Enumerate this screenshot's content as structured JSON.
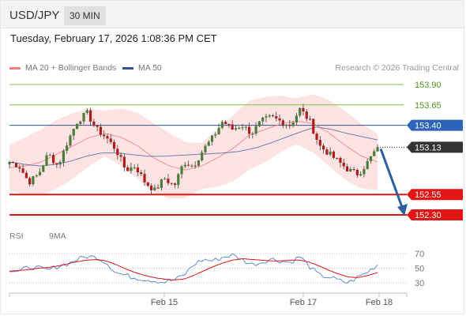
{
  "header": {
    "symbol": "USD/JPY",
    "timeframe": "30 MIN"
  },
  "datetime": "Tuesday, February 17, 2026 1:08:36 PM CET",
  "credit": "Research © 2026 Trading Central",
  "colors": {
    "bb": "#f47c7c",
    "ma50": "#2f5597",
    "resistance": "#7fc241",
    "support": "#e31414",
    "rsi": "#5b8ad9",
    "rsi_ma": "#e31414",
    "candle_up": "#4a7d3a",
    "candle_down": "#b01c1c",
    "current": "#333333",
    "arrow": "#2e5f9e"
  },
  "chart_data": {
    "type": "candlestick",
    "symbol": "USD/JPY",
    "timeframe": "30 MIN",
    "indicators": [
      "MA 20 + Bollinger Bands",
      "MA 50"
    ],
    "x_ticks": [
      "Feb 15",
      "Feb 17",
      "Feb 18"
    ],
    "ylim": [
      152.2,
      154.0
    ],
    "levels": [
      {
        "label": "153.90",
        "value": 153.9,
        "kind": "resistance"
      },
      {
        "label": "153.65",
        "value": 153.65,
        "kind": "resistance"
      },
      {
        "label": "153.40",
        "value": 153.4,
        "kind": "pivot"
      },
      {
        "label": "153.13",
        "value": 153.13,
        "kind": "current"
      },
      {
        "label": "152.55",
        "value": 152.55,
        "kind": "support"
      },
      {
        "label": "152.30",
        "value": 152.3,
        "kind": "support"
      }
    ],
    "forecast": {
      "from": 153.13,
      "to": 152.3
    },
    "price_path": [
      152.95,
      152.9,
      152.7,
      152.8,
      153.05,
      152.9,
      153.2,
      153.45,
      153.55,
      153.35,
      153.25,
      153.1,
      152.85,
      152.9,
      152.7,
      152.6,
      152.75,
      152.65,
      152.95,
      152.9,
      153.1,
      153.25,
      153.45,
      153.35,
      153.4,
      153.3,
      153.45,
      153.5,
      153.45,
      153.4,
      153.6,
      153.45,
      153.15,
      153.05,
      152.95,
      152.85,
      152.8,
      152.95,
      153.13
    ],
    "ma20": [
      152.88,
      152.9,
      152.95,
      153.05,
      153.15,
      153.25,
      153.3,
      153.25,
      153.15,
      153.0,
      152.9,
      152.85,
      152.9,
      153.0,
      153.12,
      153.28,
      153.35,
      153.42,
      153.45,
      153.42,
      153.3,
      153.15,
      153.02,
      152.95
    ],
    "ma50": [
      152.95,
      152.92,
      152.9,
      152.92,
      152.96,
      153.02,
      153.06,
      153.06,
      153.04,
      153.02,
      153.02,
      153.03,
      153.04,
      153.05,
      153.06,
      153.08,
      153.12,
      153.18,
      153.25,
      153.32,
      153.38,
      153.35,
      153.3,
      153.26,
      153.22
    ],
    "rsi_panel": {
      "legend": [
        "RSI",
        "9MA"
      ],
      "levels": [
        "70",
        "50",
        "30"
      ],
      "rsi": [
        48,
        45,
        52,
        50,
        47,
        53,
        56,
        62,
        66,
        65,
        58,
        44,
        40,
        37,
        35,
        33,
        31,
        34,
        40,
        55,
        62,
        60,
        65,
        68,
        62,
        55,
        58,
        63,
        60,
        58,
        66,
        52,
        40,
        38,
        33,
        30,
        38,
        45,
        55
      ],
      "ma9": [
        46,
        47,
        48,
        50,
        51,
        53,
        56,
        59,
        61,
        62,
        60,
        55,
        49,
        44,
        40,
        37,
        35,
        34,
        35,
        40,
        46,
        52,
        57,
        61,
        63,
        62,
        61,
        60,
        60,
        61,
        61,
        58,
        53,
        47,
        42,
        38,
        37,
        40,
        44
      ]
    }
  }
}
